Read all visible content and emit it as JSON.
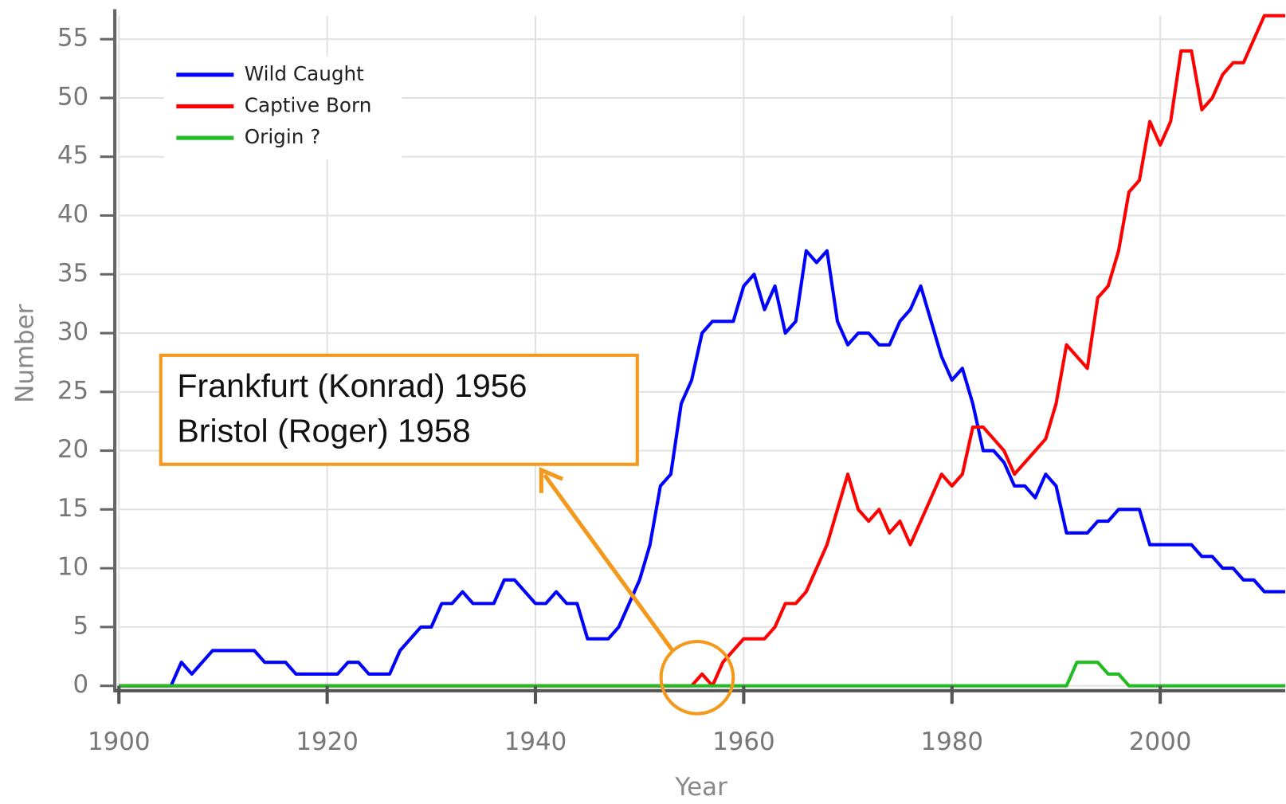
{
  "chart_data": {
    "type": "line",
    "xlabel": "Year",
    "ylabel": "Number",
    "annotation": [
      "Frankfurt (Konrad) 1956",
      "Bristol (Roger) 1958"
    ],
    "xlim": [
      1900,
      2012
    ],
    "xticks": [
      1900,
      1920,
      1940,
      1960,
      1980,
      2000
    ],
    "ylim": [
      0,
      57
    ],
    "yticks": [
      0,
      5,
      10,
      15,
      20,
      25,
      30,
      35,
      40,
      45,
      50,
      55
    ],
    "grid": true,
    "legend": "upper left",
    "x": [
      1900,
      1901,
      1902,
      1903,
      1904,
      1905,
      1906,
      1907,
      1908,
      1909,
      1910,
      1911,
      1912,
      1913,
      1914,
      1915,
      1916,
      1917,
      1918,
      1919,
      1920,
      1921,
      1922,
      1923,
      1924,
      1925,
      1926,
      1927,
      1928,
      1929,
      1930,
      1931,
      1932,
      1933,
      1934,
      1935,
      1936,
      1937,
      1938,
      1939,
      1940,
      1941,
      1942,
      1943,
      1944,
      1945,
      1946,
      1947,
      1948,
      1949,
      1950,
      1951,
      1952,
      1953,
      1954,
      1955,
      1956,
      1957,
      1958,
      1959,
      1960,
      1961,
      1962,
      1963,
      1964,
      1965,
      1966,
      1967,
      1968,
      1969,
      1970,
      1971,
      1972,
      1973,
      1974,
      1975,
      1976,
      1977,
      1978,
      1979,
      1980,
      1981,
      1982,
      1983,
      1984,
      1985,
      1986,
      1987,
      1988,
      1989,
      1990,
      1991,
      1992,
      1993,
      1994,
      1995,
      1996,
      1997,
      1998,
      1999,
      2000,
      2001,
      2002,
      2003,
      2004,
      2005,
      2006,
      2007,
      2008,
      2009,
      2010,
      2011,
      2012
    ],
    "series": [
      {
        "name": "Wild Caught",
        "color": "#0000ff",
        "values": [
          0,
          0,
          0,
          0,
          0,
          0,
          2,
          1,
          2,
          3,
          3,
          3,
          3,
          3,
          2,
          2,
          2,
          1,
          1,
          1,
          1,
          1,
          2,
          2,
          1,
          1,
          1,
          3,
          4,
          5,
          5,
          7,
          7,
          8,
          7,
          7,
          7,
          9,
          9,
          8,
          7,
          7,
          8,
          7,
          7,
          4,
          4,
          4,
          5,
          7,
          9,
          12,
          17,
          18,
          24,
          26,
          30,
          31,
          31,
          31,
          34,
          35,
          32,
          34,
          30,
          31,
          37,
          36,
          37,
          31,
          29,
          30,
          30,
          29,
          29,
          31,
          32,
          34,
          31,
          28,
          26,
          27,
          24,
          20,
          20,
          19,
          17,
          17,
          16,
          18,
          17,
          13,
          13,
          13,
          14,
          14,
          15,
          15,
          15,
          12,
          12,
          12,
          12,
          12,
          11,
          11,
          10,
          10,
          9,
          9,
          8,
          8,
          8
        ]
      },
      {
        "name": "Captive Born",
        "color": "#ff0000",
        "values": [
          0,
          0,
          0,
          0,
          0,
          0,
          0,
          0,
          0,
          0,
          0,
          0,
          0,
          0,
          0,
          0,
          0,
          0,
          0,
          0,
          0,
          0,
          0,
          0,
          0,
          0,
          0,
          0,
          0,
          0,
          0,
          0,
          0,
          0,
          0,
          0,
          0,
          0,
          0,
          0,
          0,
          0,
          0,
          0,
          0,
          0,
          0,
          0,
          0,
          0,
          0,
          0,
          0,
          0,
          0,
          0,
          1,
          0,
          2,
          3,
          4,
          4,
          4,
          5,
          7,
          7,
          8,
          10,
          12,
          15,
          18,
          15,
          14,
          15,
          13,
          14,
          12,
          14,
          16,
          18,
          17,
          18,
          22,
          22,
          21,
          20,
          18,
          19,
          20,
          21,
          24,
          29,
          28,
          27,
          33,
          34,
          37,
          42,
          43,
          48,
          46,
          48,
          54,
          54,
          49,
          50,
          52,
          53,
          53,
          55,
          57,
          57,
          57
        ]
      },
      {
        "name": "Origin ?",
        "color": "#22bb22",
        "values": [
          0,
          0,
          0,
          0,
          0,
          0,
          0,
          0,
          0,
          0,
          0,
          0,
          0,
          0,
          0,
          0,
          0,
          0,
          0,
          0,
          0,
          0,
          0,
          0,
          0,
          0,
          0,
          0,
          0,
          0,
          0,
          0,
          0,
          0,
          0,
          0,
          0,
          0,
          0,
          0,
          0,
          0,
          0,
          0,
          0,
          0,
          0,
          0,
          0,
          0,
          0,
          0,
          0,
          0,
          0,
          0,
          0,
          0,
          0,
          0,
          0,
          0,
          0,
          0,
          0,
          0,
          0,
          0,
          0,
          0,
          0,
          0,
          0,
          0,
          0,
          0,
          0,
          0,
          0,
          0,
          0,
          0,
          0,
          0,
          0,
          0,
          0,
          0,
          0,
          0,
          0,
          0,
          2,
          2,
          2,
          1,
          1,
          0,
          0,
          0,
          0,
          0,
          0,
          0,
          0,
          0,
          0,
          0,
          0,
          0,
          0,
          0,
          0
        ]
      }
    ]
  }
}
